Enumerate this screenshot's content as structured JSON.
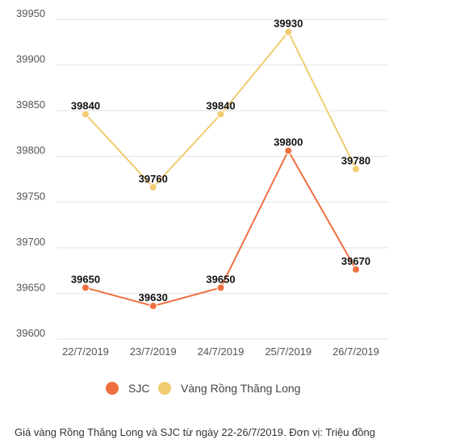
{
  "chart_data": {
    "type": "line",
    "categories": [
      "22/7/2019",
      "23/7/2019",
      "24/7/2019",
      "25/7/2019",
      "26/7/2019"
    ],
    "series": [
      {
        "name": "SJC",
        "color": "#ee7040",
        "values": [
          39650,
          39630,
          39650,
          39800,
          39670
        ]
      },
      {
        "name": "Vàng Rồng Thăng Long",
        "color": "#f1cb70",
        "values": [
          39840,
          39760,
          39840,
          39930,
          39780
        ]
      }
    ],
    "yticks": [
      39600,
      39650,
      39700,
      39750,
      39800,
      39850,
      39900,
      39950
    ],
    "ylim": [
      39600,
      39950
    ],
    "grid": true,
    "legend_position": "bottom"
  },
  "caption": "Giá vàng Rồng Thăng Long và SJC từ ngày 22-26/7/2019. Đơn vị: Triệu đồng"
}
